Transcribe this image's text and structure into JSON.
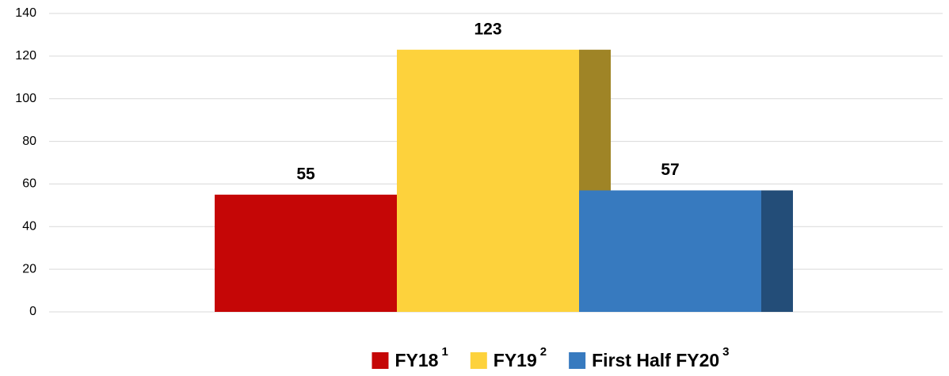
{
  "chart_data": {
    "type": "bar",
    "categories": [
      null
    ],
    "series": [
      {
        "name": "FY18",
        "footnote": "1",
        "color": "#c50606",
        "values": [
          55
        ]
      },
      {
        "name": "FY19",
        "footnote": "2",
        "color": "#fdd23c",
        "values": [
          123
        ]
      },
      {
        "name": "First Half FY20",
        "footnote": "3",
        "color": "#377abf",
        "values": [
          57
        ]
      }
    ],
    "ylim": [
      0,
      140
    ],
    "yticks": [
      0,
      20,
      40,
      60,
      80,
      100,
      120,
      140
    ],
    "grid": true,
    "legend": "bottom"
  }
}
